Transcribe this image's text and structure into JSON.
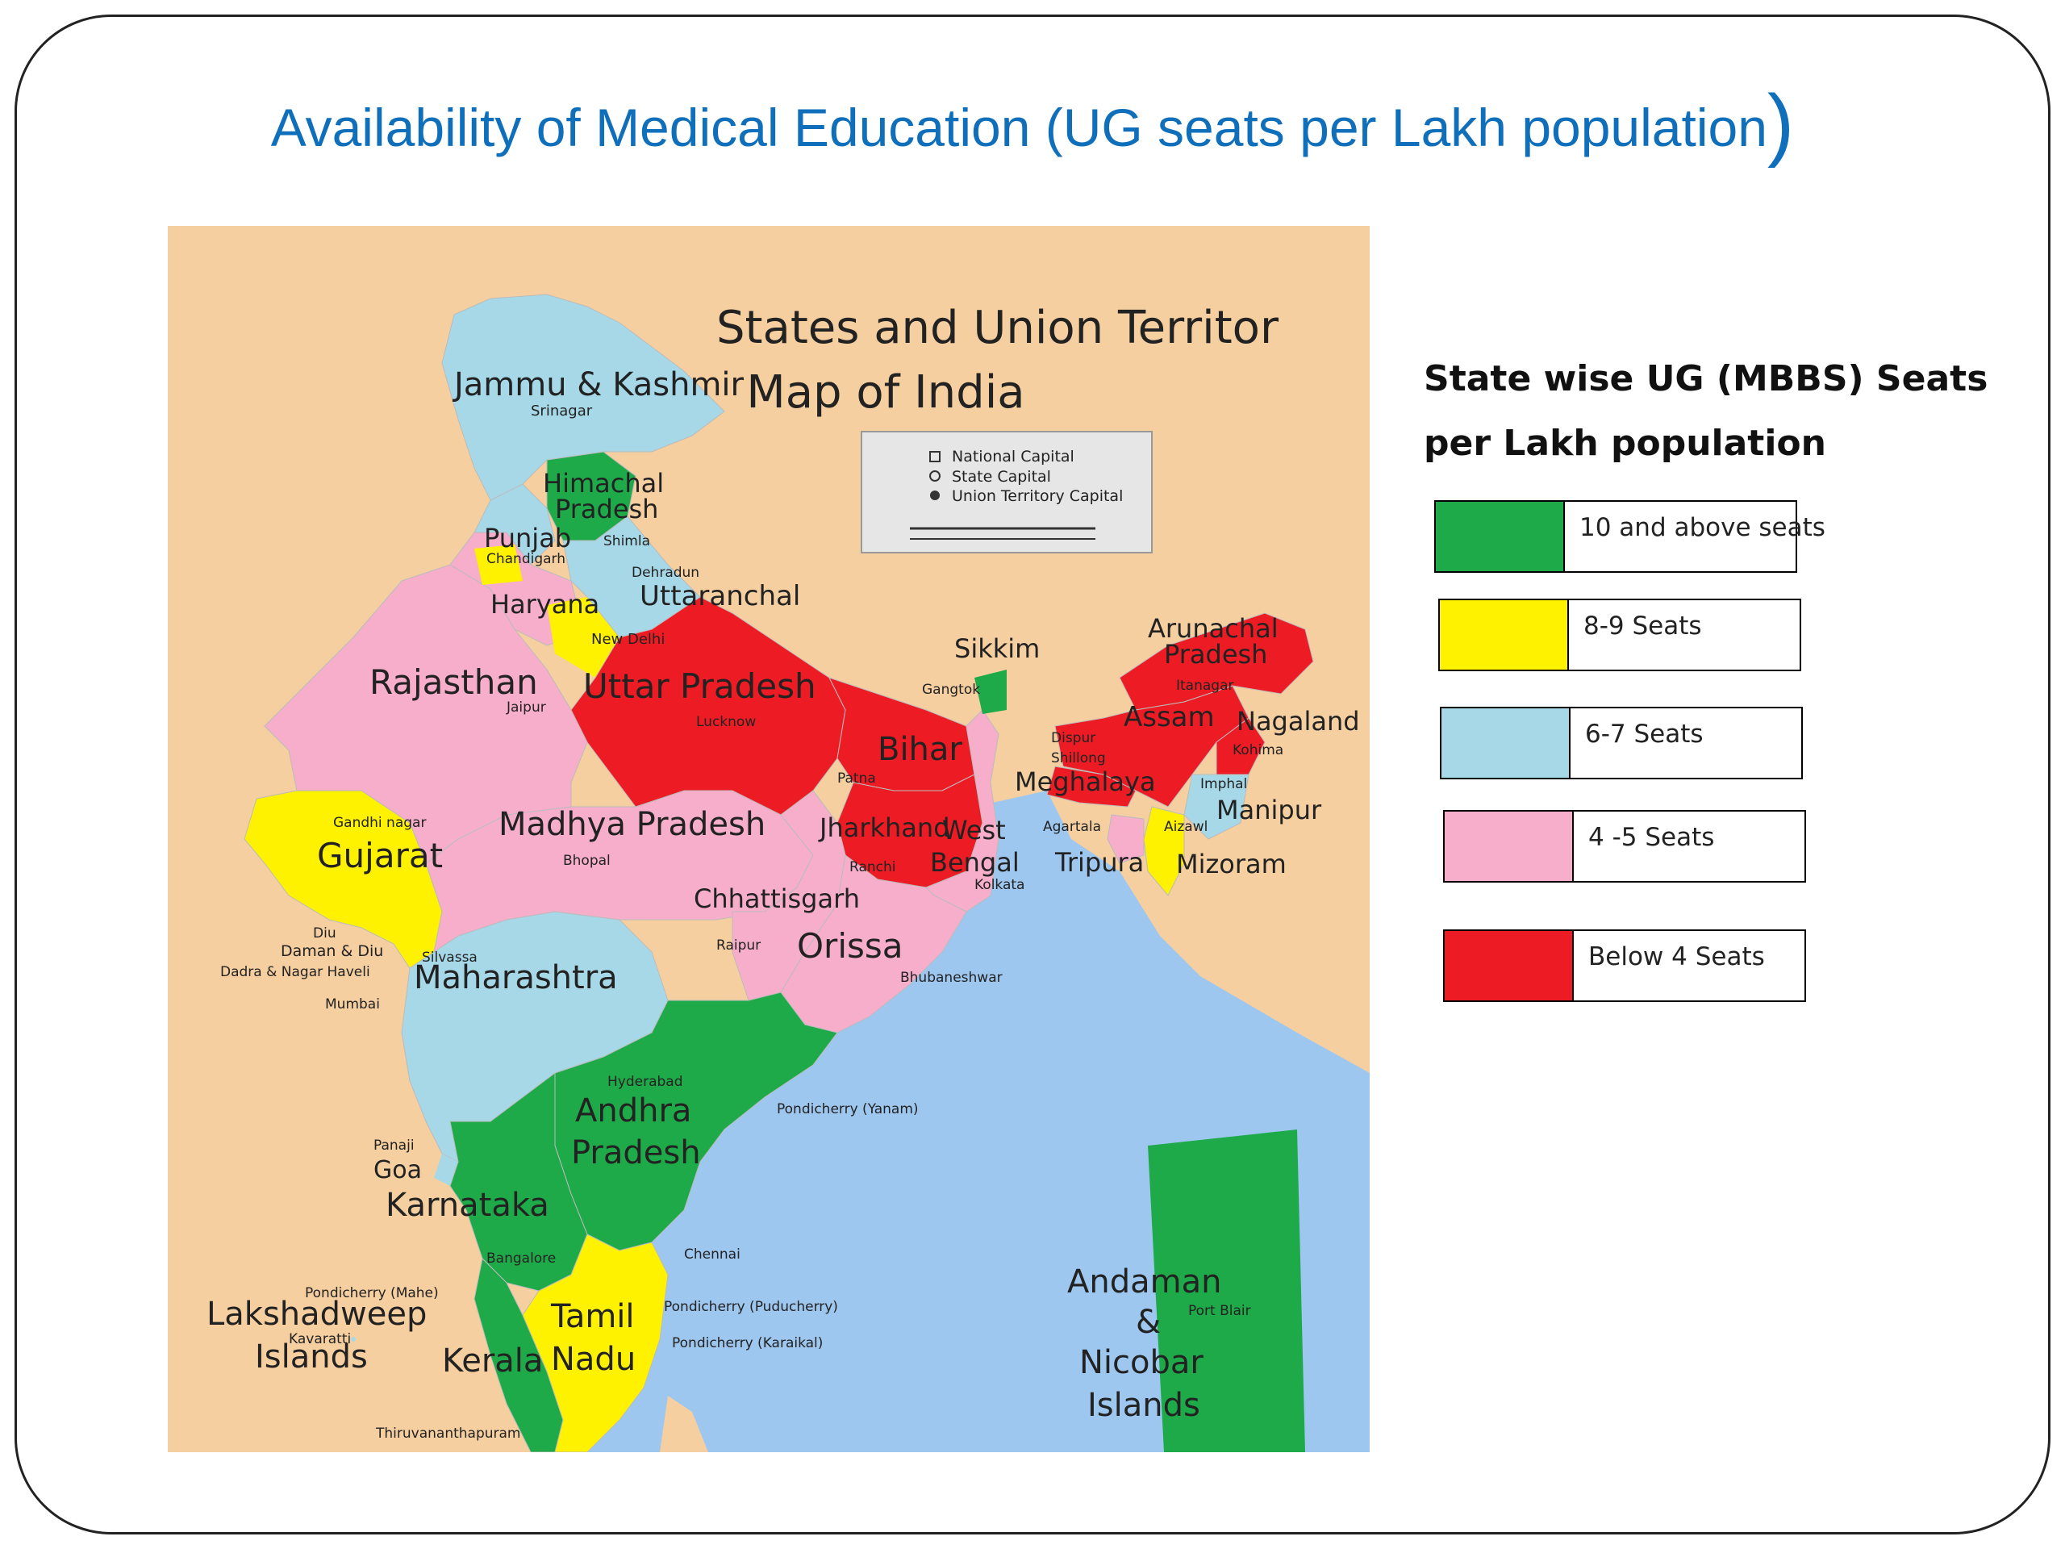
{
  "title": {
    "text": "Availability of Medical Education (UG seats per Lakh population",
    "close_paren": ")"
  },
  "map": {
    "heading_line1": "States and Union Territor",
    "heading_line2": "Map of India",
    "key": {
      "national_capital": "National Capital",
      "state_capital": "State Capital",
      "ut_capital": "Union Territory Capital"
    },
    "regions": [
      {
        "name": "Jammu & Kashmir",
        "category": "6-7 Seats"
      },
      {
        "name": "Himachal Pradesh",
        "category": "10 and above seats"
      },
      {
        "name": "Punjab",
        "category": "6-7 Seats"
      },
      {
        "name": "Chandigarh",
        "category": "8-9 Seats"
      },
      {
        "name": "Uttaranchal",
        "category": "6-7 Seats"
      },
      {
        "name": "Haryana",
        "category": "4 -5 Seats"
      },
      {
        "name": "New Delhi",
        "category": "8-9 Seats"
      },
      {
        "name": "Rajasthan",
        "category": "4 -5 Seats"
      },
      {
        "name": "Uttar Pradesh",
        "category": "Below 4 Seats"
      },
      {
        "name": "Bihar",
        "category": "Below 4 Seats"
      },
      {
        "name": "Sikkim",
        "category": "10 and above seats"
      },
      {
        "name": "Arunachal Pradesh",
        "category": "Below 4 Seats"
      },
      {
        "name": "Assam",
        "category": "Below 4 Seats"
      },
      {
        "name": "Nagaland",
        "category": "Below 4 Seats"
      },
      {
        "name": "Meghalaya",
        "category": "Below 4 Seats"
      },
      {
        "name": "Manipur",
        "category": "6-7 Seats"
      },
      {
        "name": "Mizoram",
        "category": "8-9 Seats"
      },
      {
        "name": "Tripura",
        "category": "4 -5 Seats"
      },
      {
        "name": "West Bengal",
        "category": "4 -5 Seats"
      },
      {
        "name": "Jharkhand",
        "category": "Below 4 Seats"
      },
      {
        "name": "Gujarat",
        "category": "8-9 Seats"
      },
      {
        "name": "Madhya Pradesh",
        "category": "4 -5 Seats"
      },
      {
        "name": "Chhattisgarh",
        "category": "4 -5 Seats"
      },
      {
        "name": "Orissa",
        "category": "4 -5 Seats"
      },
      {
        "name": "Maharashtra",
        "category": "6-7 Seats"
      },
      {
        "name": "Andhra Pradesh",
        "category": "10 and above seats"
      },
      {
        "name": "Goa",
        "category": "6-7 Seats"
      },
      {
        "name": "Karnataka",
        "category": "10 and above seats"
      },
      {
        "name": "Kerala",
        "category": "10 and above seats"
      },
      {
        "name": "Tamil Nadu",
        "category": "8-9 Seats"
      },
      {
        "name": "Andaman & Nicobar Islands",
        "category": "10 and above seats"
      }
    ],
    "labels": {
      "jk": "Jammu & Kashmir",
      "srinagar": "Srinagar",
      "hp1": "Himachal",
      "hp2": "Pradesh",
      "shimla": "Shimla",
      "punjab": "Punjab",
      "chandigarh": "Chandigarh",
      "dehradun": "Dehradun",
      "uttaranchal": "Uttaranchal",
      "haryana": "Haryana",
      "newdelhi": "New Delhi",
      "rajasthan": "Rajasthan",
      "jaipur": "Jaipur",
      "up": "Uttar Pradesh",
      "lucknow": "Lucknow",
      "bihar": "Bihar",
      "patna": "Patna",
      "sikkim": "Sikkim",
      "gangtok": "Gangtok",
      "arun1": "Arunachal",
      "arun2": "Pradesh",
      "itanagar": "Itanagar",
      "assam": "Assam",
      "dispur": "Dispur",
      "shillong": "Shillong",
      "nagaland": "Nagaland",
      "kohima": "Kohima",
      "meghalaya": "Meghalaya",
      "imphal": "Imphal",
      "manipur": "Manipur",
      "agartala": "Agartala",
      "aizawl": "Aizawl",
      "tripura": "Tripura",
      "mizoram": "Mizoram",
      "jharkhand": "Jharkhand",
      "ranchi": "Ranchi",
      "wb1": "West",
      "wb2": "Bengal",
      "kolkata": "Kolkata",
      "gandhinagar": "Gandhi nagar",
      "gujarat": "Gujarat",
      "mp": "Madhya Pradesh",
      "bhopal": "Bhopal",
      "chhattisgarh": "Chhattisgarh",
      "raipur": "Raipur",
      "orissa": "Orissa",
      "bhubaneshwar": "Bhubaneshwar",
      "diu": "Diu",
      "daman": "Daman & Diu",
      "silvassa": "Silvassa",
      "dnh": "Dadra & Nagar Haveli",
      "mumbai": "Mumbai",
      "maharashtra": "Maharashtra",
      "hyderabad": "Hyderabad",
      "ap1": "Andhra",
      "ap2": "Pradesh",
      "yanam": "Pondicherry (Yanam)",
      "panaji": "Panaji",
      "goa": "Goa",
      "karnataka": "Karnataka",
      "bangalore": "Bangalore",
      "chennai": "Chennai",
      "mahe": "Pondicherry (Mahe)",
      "puducherry": "Pondicherry (Puducherry)",
      "karaikal": "Pondicherry (Karaikal)",
      "lak1": "Lakshadweep",
      "kavaratti": "Kavaratti",
      "lak2": "Islands",
      "kerala": "Kerala",
      "tn1": "Tamil",
      "tn2": "Nadu",
      "tvm": "Thiruvananthapuram",
      "an1": "Andaman",
      "an2": "&",
      "an3": "Nicobar",
      "an4": "Islands",
      "portblair": "Port Blair"
    }
  },
  "legend": {
    "heading_line1": "State wise UG (MBBS) Seats",
    "heading_line2": "per Lakh population",
    "items": [
      {
        "label": "10 and above seats",
        "color": "#1faa4a"
      },
      {
        "label": "8-9 Seats",
        "color": "#fff200"
      },
      {
        "label": "6-7 Seats",
        "color": "#a6d8e8"
      },
      {
        "label": "4 -5 Seats",
        "color": "#f7aecb"
      },
      {
        "label": "Below 4 Seats",
        "color": "#ed1c24"
      }
    ]
  },
  "colors": {
    "title": "#0f6fba",
    "sea": "#9ec7f0",
    "land": "#f5cfa0",
    "green": "#1faa4a",
    "yellow": "#fff200",
    "blue": "#a6d8e8",
    "pink": "#f7aecb",
    "red": "#ed1c24"
  }
}
